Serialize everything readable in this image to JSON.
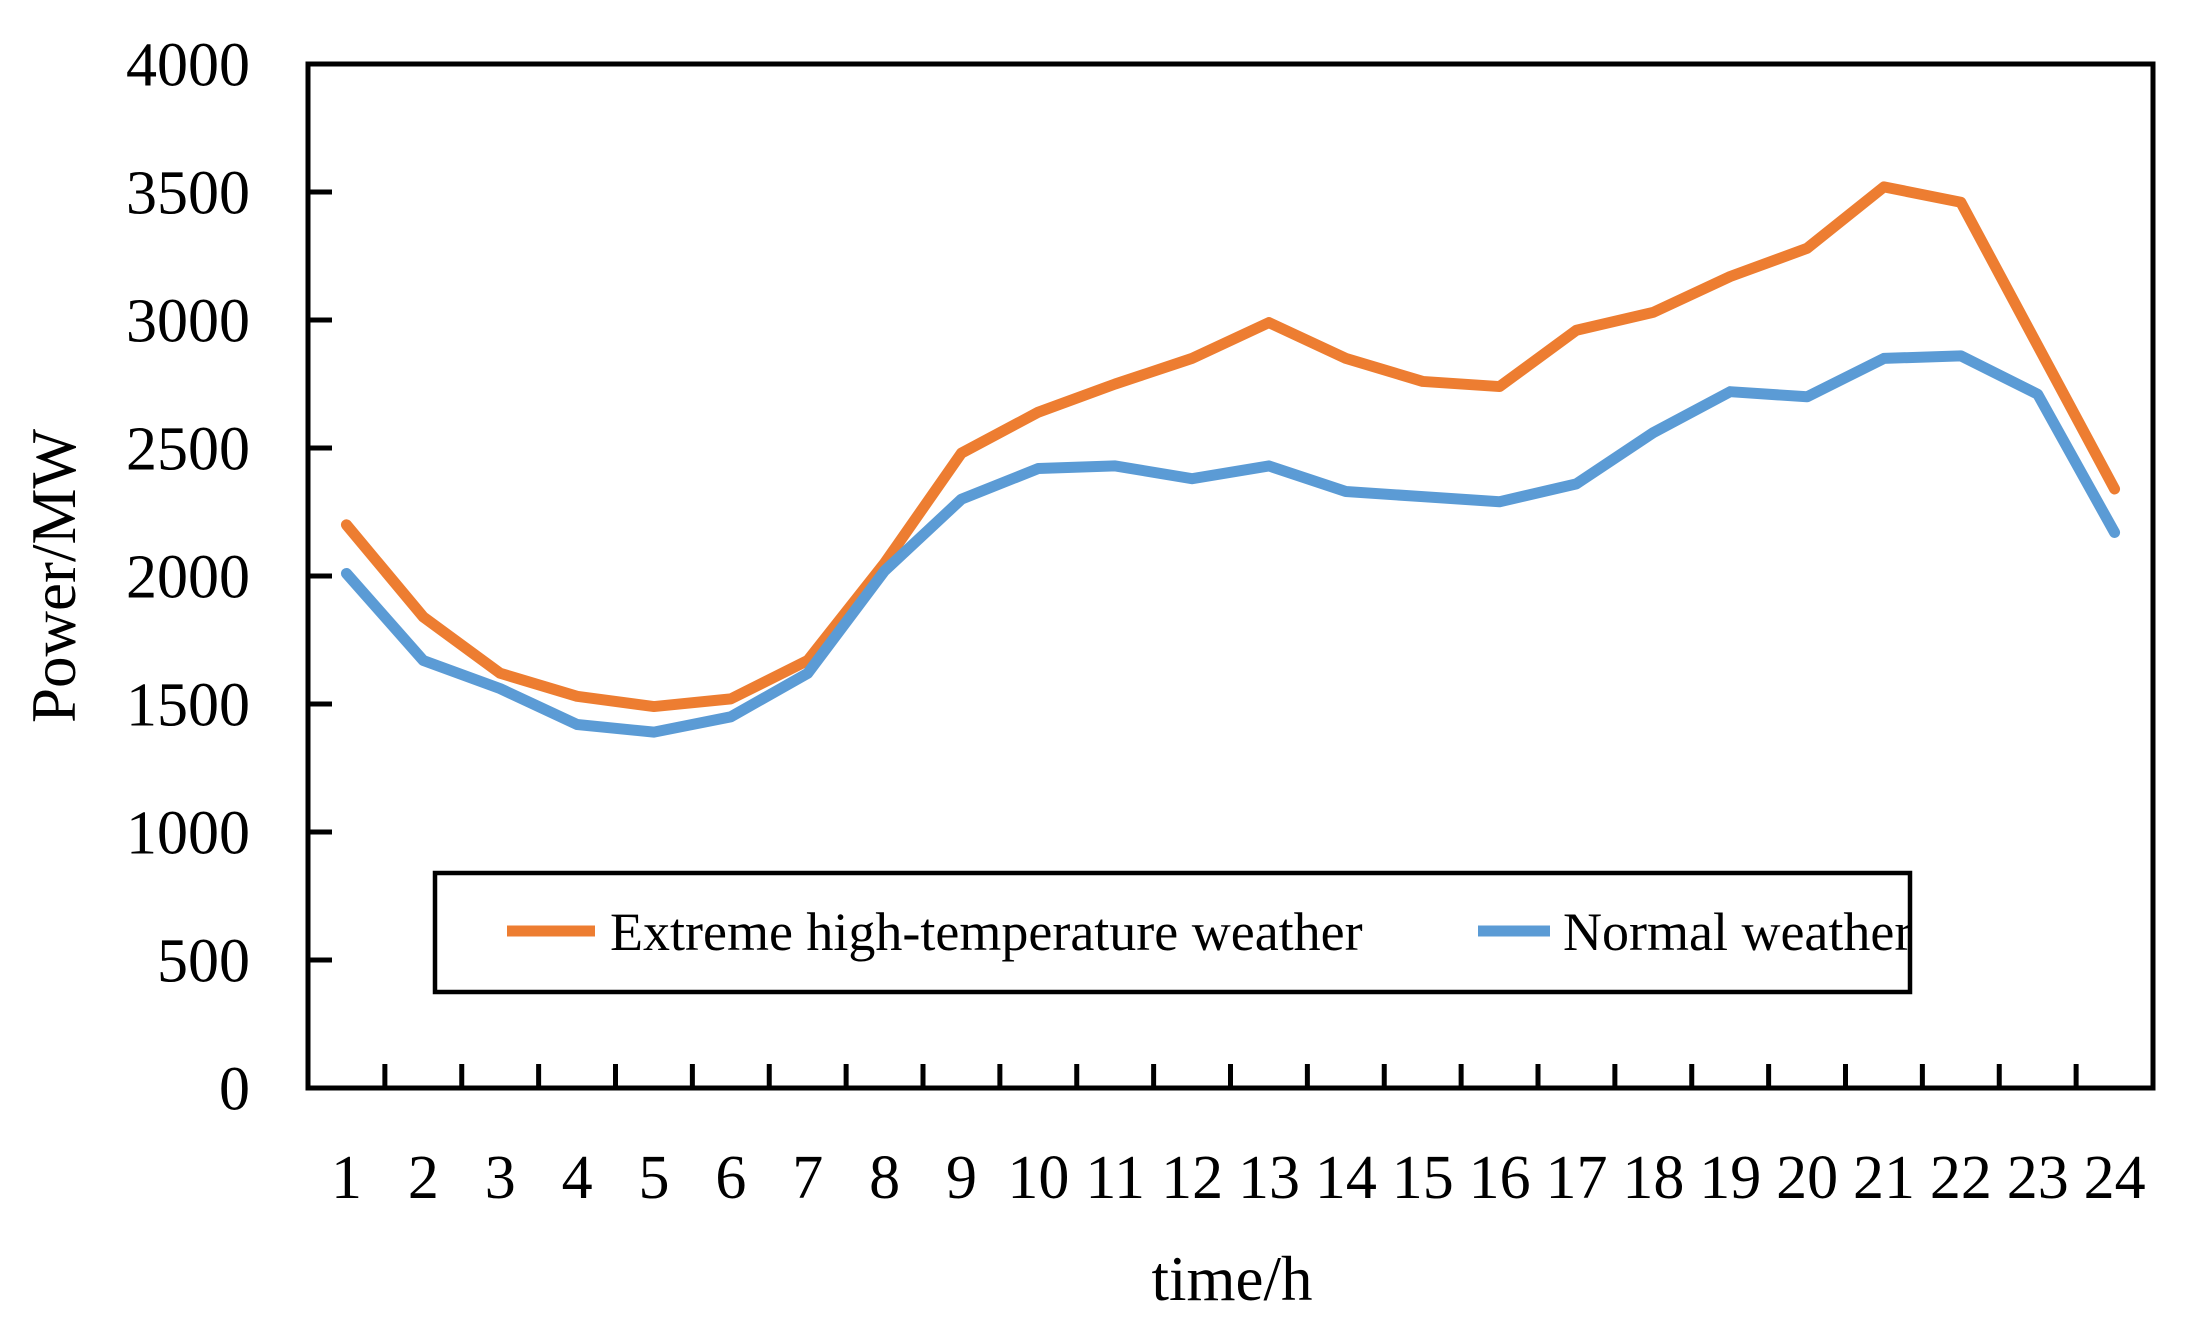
{
  "chart_data": {
    "type": "line",
    "title": "",
    "xlabel": "time/h",
    "ylabel": "Power/MW",
    "x": [
      1,
      2,
      3,
      4,
      5,
      6,
      7,
      8,
      9,
      10,
      11,
      12,
      13,
      14,
      15,
      16,
      17,
      18,
      19,
      20,
      21,
      22,
      23,
      24
    ],
    "yticks": [
      0,
      500,
      1000,
      1500,
      2000,
      2500,
      3000,
      3500,
      4000
    ],
    "ylim": [
      0,
      4000
    ],
    "grid": false,
    "legend_position": "inside-bottom-left",
    "series": [
      {
        "name": "Extreme high-temperature weather",
        "color": "#ED7D31",
        "values": [
          2200,
          1840,
          1620,
          1530,
          1490,
          1520,
          1670,
          2050,
          2480,
          2640,
          2750,
          2850,
          2990,
          2850,
          2760,
          2740,
          2960,
          3030,
          3170,
          3280,
          3520,
          3460,
          2900,
          2340
        ]
      },
      {
        "name": "Normal weather",
        "color": "#5B9BD5",
        "values": [
          2010,
          1670,
          1560,
          1420,
          1390,
          1450,
          1620,
          2020,
          2300,
          2420,
          2430,
          2380,
          2430,
          2330,
          2310,
          2290,
          2360,
          2560,
          2720,
          2700,
          2850,
          2860,
          2710,
          2170
        ]
      }
    ],
    "colors": {
      "axis": "#000000",
      "background": "#FFFFFF",
      "legend_border": "#000000"
    }
  }
}
